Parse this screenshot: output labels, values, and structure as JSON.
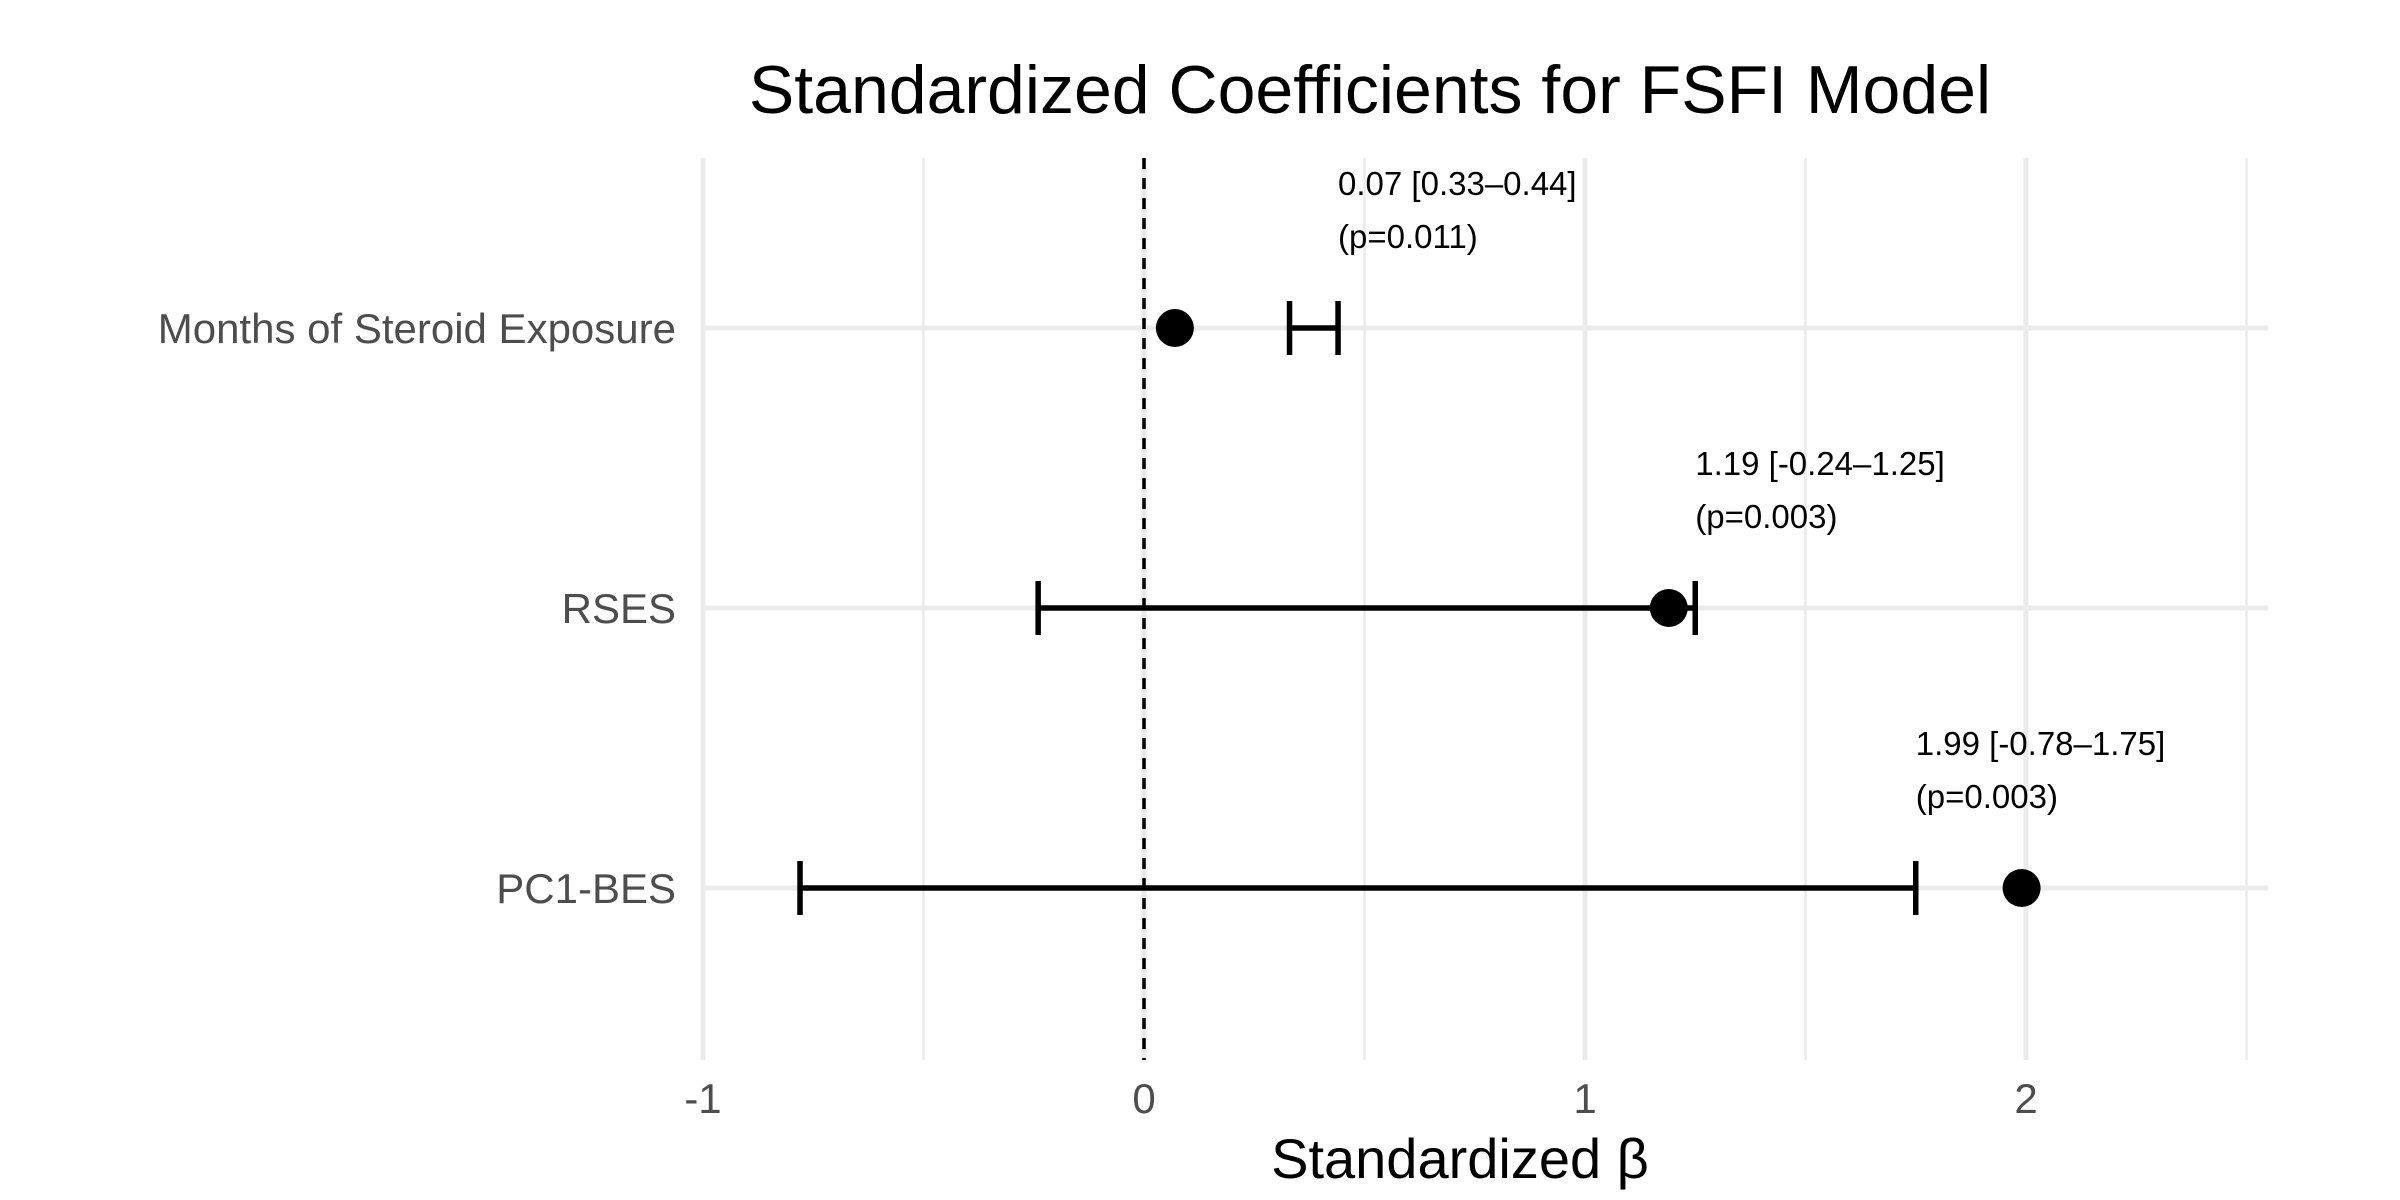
{
  "chart_data": {
    "type": "forest",
    "title": "Standardized Coefficients for FSFI Model",
    "xlabel": "Standardized β",
    "ylabel": "",
    "xlim": [
      -1,
      2.55
    ],
    "x_ticks": [
      "-1",
      "0",
      "1",
      "2"
    ],
    "x_tick_values": [
      -1,
      0,
      1,
      2
    ],
    "minor_grid_values": [
      -0.5,
      0.5,
      1.5,
      2.5
    ],
    "reference_line": {
      "x": 0,
      "style": "dashed"
    },
    "grid": true,
    "colors": {
      "point": "#000000",
      "grid": "#ebebeb",
      "tick_text": "#4d4d4d"
    },
    "rows": [
      {
        "label": "Months of Steroid Exposure",
        "estimate": 0.07,
        "ci_low": 0.33,
        "ci_high": 0.44,
        "annotation_line1": "0.07 [0.33–0.44]",
        "annotation_line2": "(p=0.011)"
      },
      {
        "label": "RSES",
        "estimate": 1.19,
        "ci_low": -0.24,
        "ci_high": 1.25,
        "annotation_line1": "1.19 [-0.24–1.25]",
        "annotation_line2": "(p=0.003)"
      },
      {
        "label": "PC1-BES",
        "estimate": 1.99,
        "ci_low": -0.78,
        "ci_high": 1.75,
        "annotation_line1": "1.99 [-0.78–1.75]",
        "annotation_line2": "(p=0.003)"
      }
    ]
  }
}
